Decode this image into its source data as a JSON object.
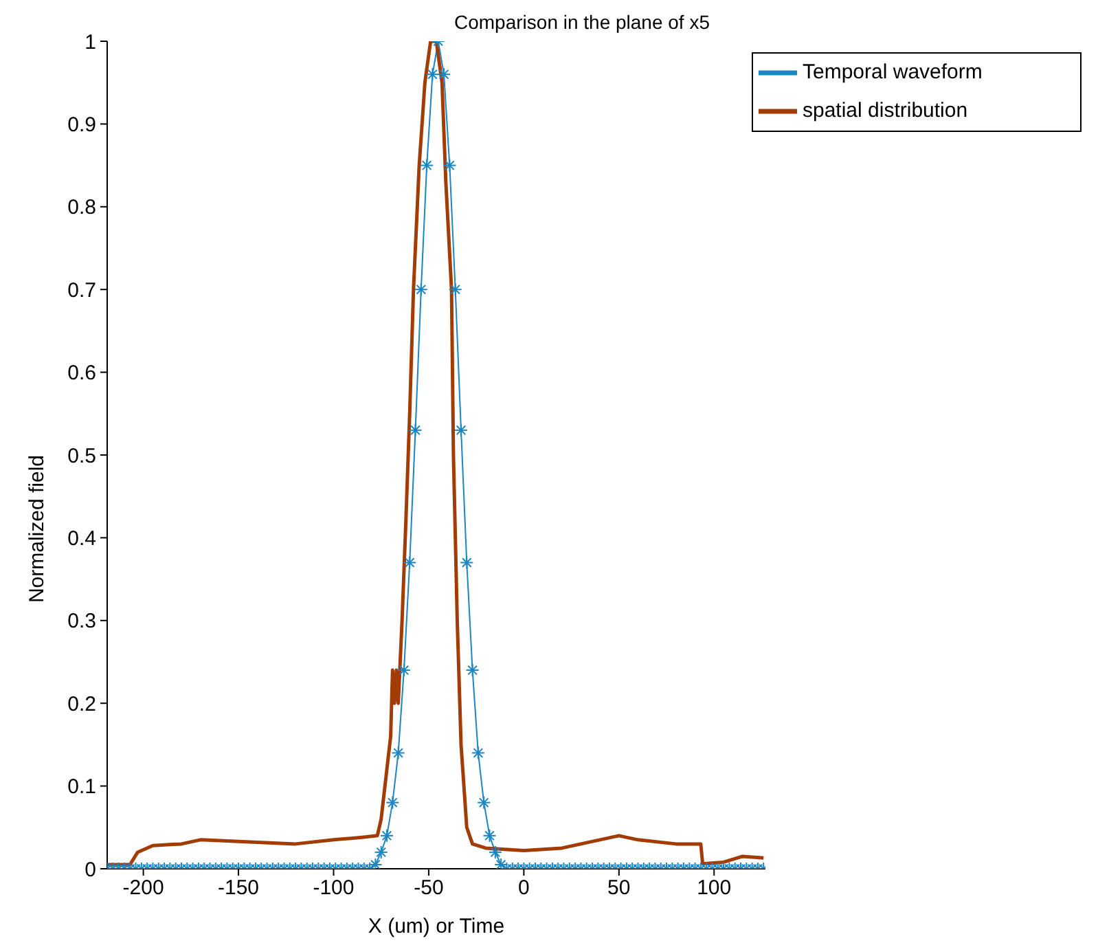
{
  "chart_data": {
    "type": "line",
    "title": "Comparison in the plane of x5",
    "xlabel": "X (um) or Time",
    "ylabel": "Normalized field",
    "xlim": [
      -219,
      127
    ],
    "xticks": [
      -200,
      -150,
      -100,
      -50,
      0,
      50,
      100
    ],
    "ylim": [
      0,
      1
    ],
    "yticks": [
      0,
      0.1,
      0.2,
      0.3,
      0.4,
      0.5,
      0.6,
      0.7,
      0.8,
      0.9,
      1
    ],
    "grid": false,
    "legend": "top right",
    "line_style": "solid",
    "series": [
      {
        "name": "Temporal waveform",
        "color": "#1a86c4",
        "marker": "cross",
        "x": [
          -219,
          -216,
          -213,
          -210,
          -207,
          -204,
          -201,
          -198,
          -195,
          -192,
          -189,
          -186,
          -183,
          -180,
          -177,
          -174,
          -171,
          -168,
          -165,
          -162,
          -159,
          -156,
          -153,
          -150,
          -147,
          -144,
          -141,
          -138,
          -135,
          -132,
          -129,
          -126,
          -123,
          -120,
          -117,
          -114,
          -111,
          -108,
          -105,
          -102,
          -99,
          -96,
          -93,
          -90,
          -87,
          -84,
          -81,
          -78,
          -75,
          -72,
          -69,
          -66,
          -63,
          -60,
          -57,
          -54,
          -51,
          -48,
          -45,
          -42,
          -39,
          -36,
          -33,
          -30,
          -27,
          -24,
          -21,
          -18,
          -15,
          -12,
          -9,
          -6,
          -3,
          0,
          3,
          6,
          9,
          12,
          15,
          18,
          21,
          24,
          27,
          30,
          33,
          36,
          39,
          42,
          45,
          48,
          51,
          54,
          57,
          60,
          63,
          66,
          69,
          72,
          75,
          78,
          81,
          84,
          87,
          90,
          93,
          96,
          99,
          102,
          105,
          108,
          111,
          114,
          117,
          120,
          123,
          126
        ],
        "values": [
          0,
          0,
          0,
          0,
          0,
          0,
          0,
          0,
          0,
          0,
          0,
          0,
          0,
          0,
          0,
          0,
          0,
          0,
          0,
          0,
          0,
          0,
          0,
          0,
          0,
          0,
          0,
          0,
          0,
          0,
          0,
          0,
          0,
          0,
          0,
          0,
          0,
          0,
          0,
          0,
          0,
          0,
          0,
          0,
          0,
          0,
          0,
          0.005,
          0.02,
          0.04,
          0.08,
          0.14,
          0.24,
          0.37,
          0.53,
          0.7,
          0.85,
          0.96,
          1,
          0.96,
          0.85,
          0.7,
          0.53,
          0.37,
          0.24,
          0.14,
          0.08,
          0.04,
          0.02,
          0.005,
          0,
          0,
          0,
          0,
          0,
          0,
          0,
          0,
          0,
          0,
          0,
          0,
          0,
          0,
          0,
          0,
          0,
          0,
          0,
          0,
          0,
          0,
          0,
          0,
          0,
          0,
          0,
          0,
          0,
          0,
          0,
          0,
          0,
          0,
          0,
          0,
          0,
          0,
          0,
          0,
          0,
          0,
          0,
          0,
          0,
          0
        ]
      },
      {
        "name": "spatial distribution",
        "color": "#a33b05",
        "x": [
          -219,
          -207,
          -203,
          -195,
          -180,
          -170,
          -150,
          -120,
          -100,
          -85,
          -77,
          -75,
          -72,
          -70,
          -69,
          -68,
          -67,
          -66,
          -64,
          -62,
          -60,
          -58,
          -55,
          -52,
          -49,
          -46,
          -43,
          -41,
          -38,
          -37,
          -35,
          -33,
          -30,
          -27,
          -20,
          0,
          20,
          30,
          40,
          50,
          60,
          80,
          93,
          94,
          105,
          115,
          126
        ],
        "values": [
          0.005,
          0.005,
          0.02,
          0.028,
          0.03,
          0.035,
          0.033,
          0.03,
          0.035,
          0.038,
          0.04,
          0.06,
          0.12,
          0.16,
          0.24,
          0.2,
          0.24,
          0.2,
          0.3,
          0.42,
          0.55,
          0.7,
          0.85,
          0.95,
          1,
          1,
          0.95,
          0.83,
          0.7,
          0.5,
          0.3,
          0.15,
          0.05,
          0.03,
          0.025,
          0.022,
          0.025,
          0.03,
          0.035,
          0.04,
          0.035,
          0.03,
          0.03,
          0.006,
          0.008,
          0.015,
          0.013
        ]
      }
    ]
  }
}
